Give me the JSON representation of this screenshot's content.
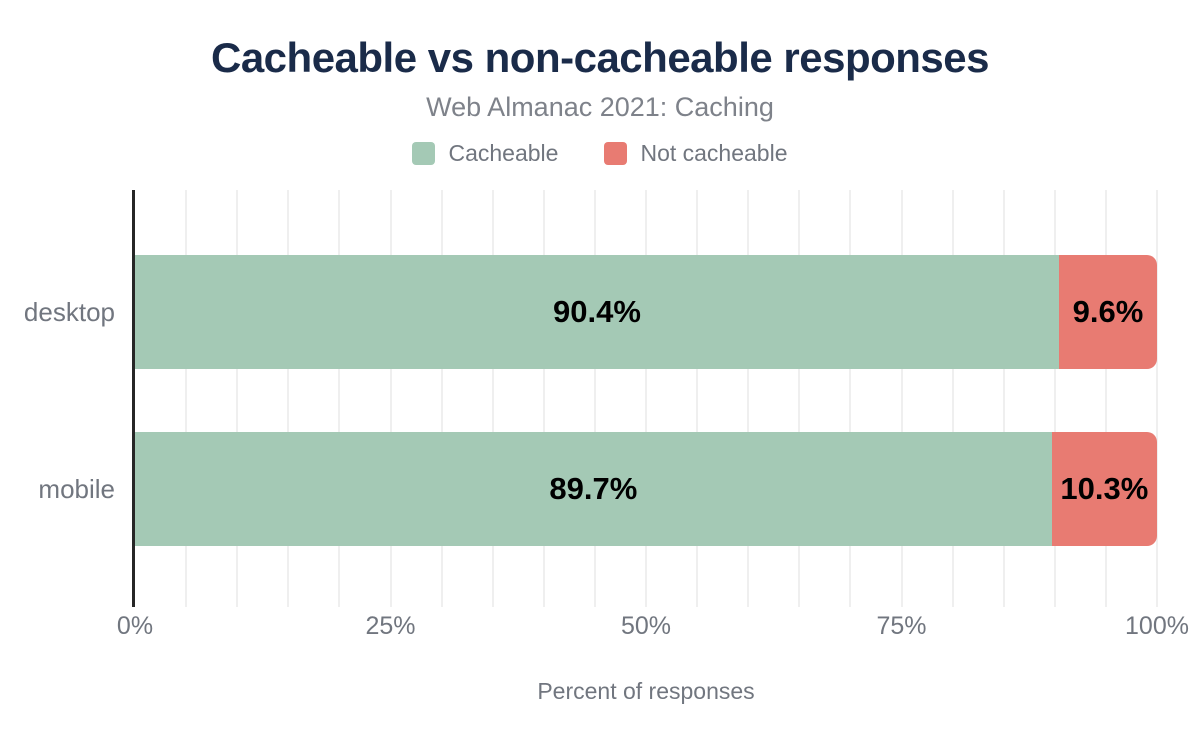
{
  "header": {
    "title": "Cacheable vs non-cacheable responses",
    "subtitle": "Web Almanac 2021: Caching"
  },
  "legend": {
    "items": [
      {
        "label": "Cacheable",
        "color": "#a4c9b5"
      },
      {
        "label": "Not cacheable",
        "color": "#e87b72"
      }
    ]
  },
  "chart_data": {
    "type": "bar",
    "orientation": "horizontal",
    "stacked": true,
    "title": "Cacheable vs non-cacheable responses",
    "subtitle": "Web Almanac 2021: Caching",
    "categories": [
      "desktop",
      "mobile"
    ],
    "series": [
      {
        "name": "Cacheable",
        "color": "#a4c9b5",
        "values": [
          90.4,
          89.7
        ],
        "labels": [
          "90.4%",
          "89.7%"
        ]
      },
      {
        "name": "Not cacheable",
        "color": "#e87b72",
        "values": [
          9.6,
          10.3
        ],
        "labels": [
          "9.6%",
          "10.3%"
        ]
      }
    ],
    "xlabel": "Percent of responses",
    "ylabel": "",
    "xlim": [
      0,
      100
    ],
    "x_ticks": [
      {
        "label": "0%",
        "value": 0
      },
      {
        "label": "25%",
        "value": 25
      },
      {
        "label": "50%",
        "value": 50
      },
      {
        "label": "75%",
        "value": 75
      },
      {
        "label": "100%",
        "value": 100
      }
    ],
    "grid": true,
    "grid_step": 5,
    "legend_position": "top",
    "colors": {
      "title": "#1a2b49",
      "text_gray": "#71767f",
      "subtitle_gray": "#7e828a",
      "gridline": "#efefef",
      "axis_line": "#262626",
      "data_label": "#000000"
    }
  }
}
